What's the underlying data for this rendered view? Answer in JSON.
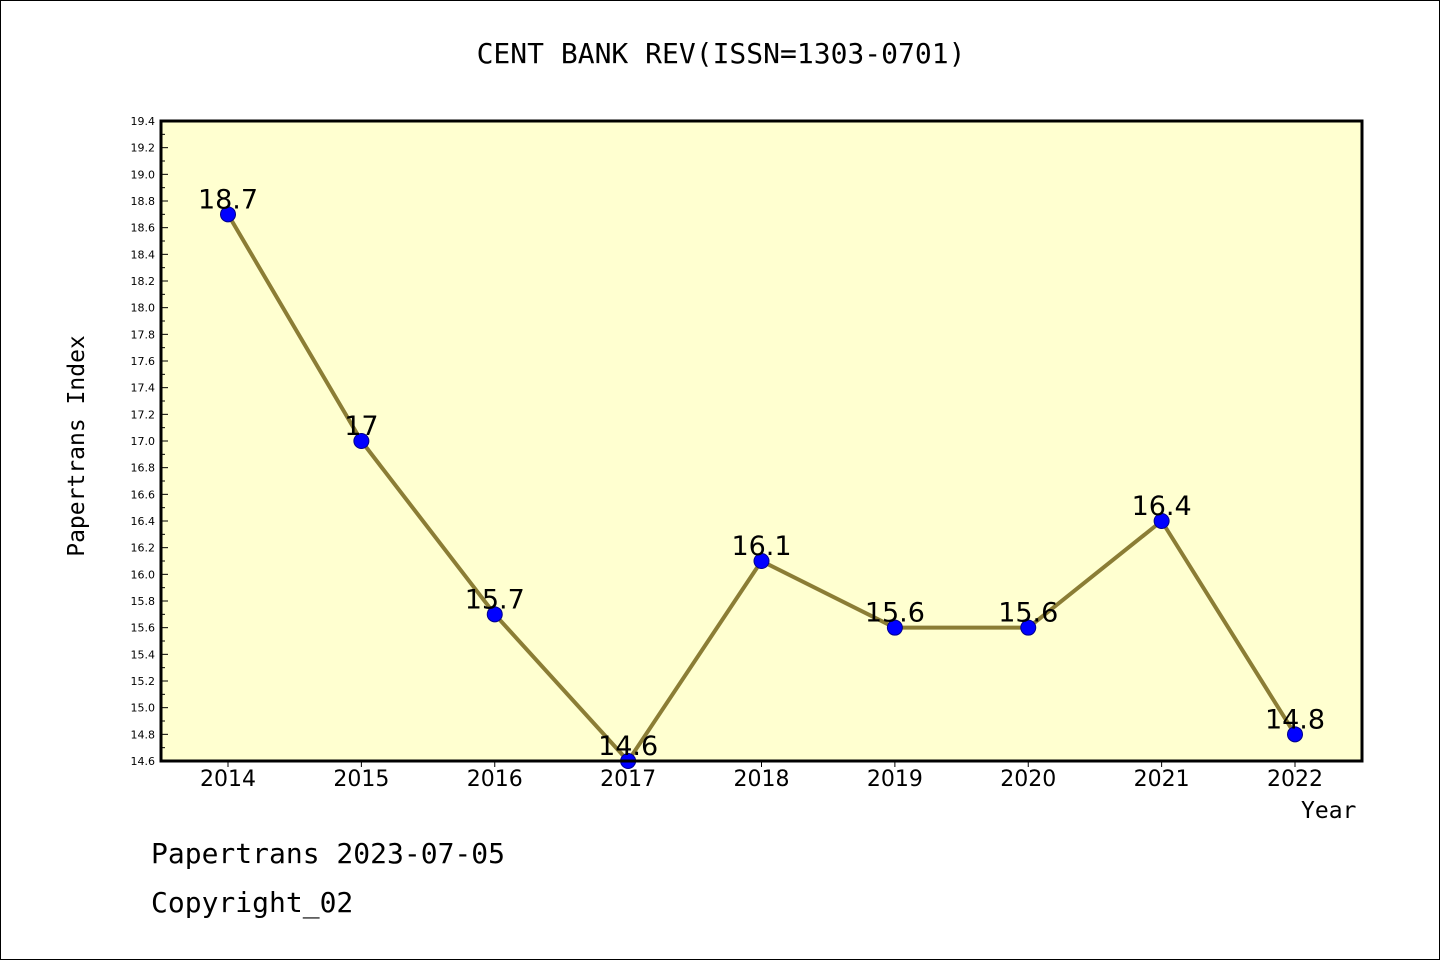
{
  "chart_data": {
    "type": "line",
    "title": "CENT BANK REV(ISSN=1303-0701)",
    "xlabel": "Year",
    "ylabel": "Papertrans Index",
    "categories": [
      "2014",
      "2015",
      "2016",
      "2017",
      "2018",
      "2019",
      "2020",
      "2021",
      "2022"
    ],
    "series": [
      {
        "values": [
          18.7,
          17,
          15.7,
          14.6,
          16.1,
          15.6,
          15.6,
          16.4,
          14.8
        ],
        "data_labels": [
          "18.7",
          "17",
          "15.7",
          "14.6",
          "16.1",
          "15.6",
          "15.6",
          "16.4",
          "14.8"
        ]
      }
    ],
    "ylim": [
      14.6,
      19.4
    ],
    "yticks": [
      "14.6",
      "14.8",
      "15.0",
      "15.2",
      "15.4",
      "15.6",
      "15.8",
      "16.0",
      "16.2",
      "16.4",
      "16.6",
      "16.8",
      "17.0",
      "17.2",
      "17.4",
      "17.6",
      "17.8",
      "18.0",
      "18.2",
      "18.4",
      "18.6",
      "18.8",
      "19.0",
      "19.2",
      "19.4"
    ],
    "grid": false,
    "legend": "none",
    "colors": {
      "plot_background": "#ffffd0",
      "line": "#8b7d35",
      "marker": "#0000ff",
      "marker_edge": "#00008b"
    }
  },
  "footer": {
    "date": "Papertrans 2023-07-05",
    "copyright": "Copyright_02"
  }
}
